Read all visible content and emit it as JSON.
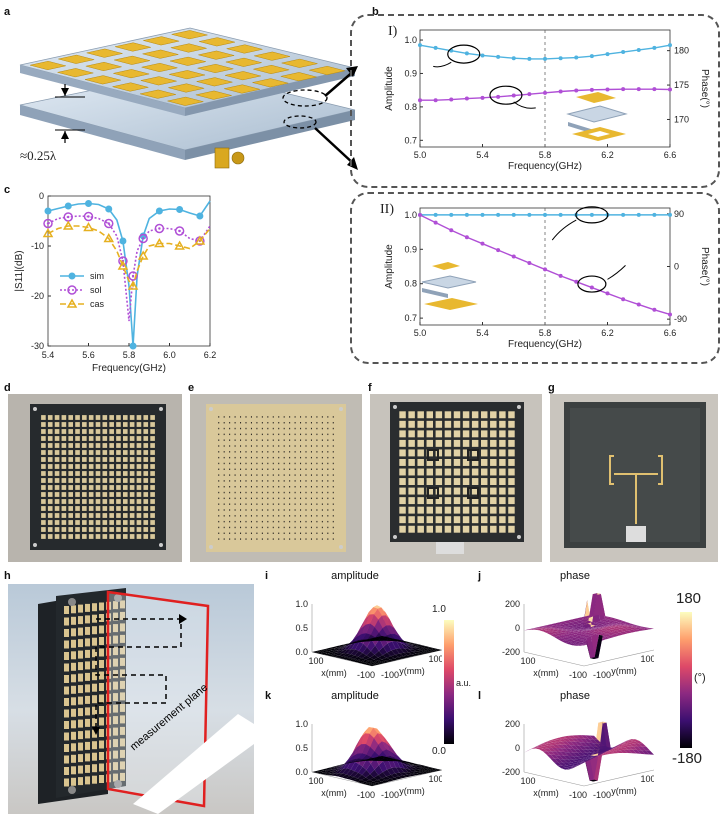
{
  "panels": {
    "a": "a",
    "b": "b",
    "c": "c",
    "d": "d",
    "e": "e",
    "f": "f",
    "g": "g",
    "h": "h",
    "i": "i",
    "j": "j",
    "k": "k",
    "l": "l"
  },
  "panel_a": {
    "spacing_label": "≈0.25λ"
  },
  "panel_b": {
    "sub1": "I)",
    "sub2": "II)",
    "xlabel": "Frequency(GHz)",
    "ylabel_left": "Amplitude",
    "ylabel_right": "Phase(°)",
    "marker_freq": 5.8
  },
  "panel_h": {
    "plane_label": "measurement plane"
  },
  "surface_titles": {
    "i": "amplitude",
    "j": "phase",
    "k": "amplitude",
    "l": "phase"
  },
  "surface_axes": {
    "x": "x(mm)",
    "y": "y(mm)"
  },
  "colorbar_amp": {
    "max": "1.0",
    "min": "0.0",
    "unit": "a.u."
  },
  "colorbar_phase": {
    "max": "180",
    "min": "-180",
    "unit": "(°)"
  },
  "colors": {
    "sim": "#4fb3e0",
    "sol": "#b04fd6",
    "cas": "#e6b020",
    "patch": "#e8b830",
    "substrate": "#c9d6e4"
  },
  "chart_data": [
    {
      "id": "b-I",
      "type": "line",
      "xlabel": "Frequency(GHz)",
      "ylabel": "Amplitude",
      "y2label": "Phase(°)",
      "xlim": [
        5.0,
        6.6
      ],
      "ylim": [
        0.68,
        1.03
      ],
      "y2lim": [
        166,
        183
      ],
      "xticks": [
        5.0,
        5.4,
        5.8,
        6.2,
        6.6
      ],
      "yticks": [
        0.7,
        0.8,
        0.9,
        1.0
      ],
      "y2ticks": [
        170,
        175,
        180
      ],
      "x": [
        5.0,
        5.1,
        5.2,
        5.3,
        5.4,
        5.5,
        5.6,
        5.7,
        5.8,
        5.9,
        6.0,
        6.1,
        6.2,
        6.3,
        6.4,
        6.5,
        6.6
      ],
      "series": [
        {
          "axis": "right",
          "values": [
            180.8,
            180.4,
            180.0,
            179.6,
            179.3,
            179.1,
            178.9,
            178.8,
            178.8,
            178.9,
            179.0,
            179.2,
            179.5,
            179.8,
            180.1,
            180.4,
            180.8
          ]
        },
        {
          "axis": "left",
          "values": [
            0.82,
            0.82,
            0.822,
            0.825,
            0.827,
            0.83,
            0.834,
            0.838,
            0.842,
            0.846,
            0.849,
            0.851,
            0.852,
            0.853,
            0.853,
            0.853,
            0.852
          ]
        }
      ]
    },
    {
      "id": "b-II",
      "type": "line",
      "xlabel": "Frequency(GHz)",
      "ylabel": "Amplitude",
      "y2label": "Phase(°)",
      "xlim": [
        5.0,
        6.6
      ],
      "ylim": [
        0.68,
        1.02
      ],
      "y2lim": [
        -100,
        100
      ],
      "xticks": [
        5.0,
        5.4,
        5.8,
        6.2,
        6.6
      ],
      "yticks": [
        0.7,
        0.8,
        0.9,
        1.0
      ],
      "y2ticks": [
        -90,
        0,
        90
      ],
      "x": [
        5.0,
        5.1,
        5.2,
        5.3,
        5.4,
        5.5,
        5.6,
        5.7,
        5.8,
        5.9,
        6.0,
        6.1,
        6.2,
        6.3,
        6.4,
        6.5,
        6.6
      ],
      "series": [
        {
          "axis": "left",
          "values": [
            1.0,
            1.0,
            1.0,
            1.0,
            1.0,
            1.0,
            1.0,
            1.0,
            1.0,
            1.0,
            1.0,
            1.0,
            1.0,
            1.0,
            1.0,
            1.0,
            1.0
          ]
        },
        {
          "axis": "right",
          "values": [
            88,
            75,
            62,
            50,
            39,
            28,
            17,
            6,
            -5,
            -16,
            -26,
            -36,
            -46,
            -56,
            -65,
            -74,
            -82
          ]
        }
      ]
    },
    {
      "id": "c",
      "type": "line",
      "xlabel": "Frequency(GHz)",
      "ylabel": "|S11|(dB)",
      "xlim": [
        5.4,
        6.2
      ],
      "ylim": [
        -30,
        0
      ],
      "xticks": [
        5.4,
        5.6,
        5.8,
        6.0,
        6.2
      ],
      "yticks": [
        -30,
        -20,
        -10,
        0
      ],
      "legend": "left",
      "series": [
        {
          "name": "sim",
          "x": [
            5.4,
            5.45,
            5.5,
            5.55,
            5.6,
            5.65,
            5.7,
            5.74,
            5.77,
            5.8,
            5.82,
            5.84,
            5.87,
            5.9,
            5.95,
            6.0,
            6.05,
            6.1,
            6.15,
            6.2
          ],
          "values": [
            -3.0,
            -2.5,
            -2.0,
            -1.6,
            -1.5,
            -1.7,
            -2.6,
            -4.8,
            -9.0,
            -18.0,
            -30.0,
            -16.0,
            -8.0,
            -4.5,
            -3.0,
            -2.6,
            -2.7,
            -3.4,
            -4.0,
            -1.0
          ]
        },
        {
          "name": "sol",
          "x": [
            5.4,
            5.45,
            5.5,
            5.55,
            5.6,
            5.65,
            5.7,
            5.74,
            5.77,
            5.8,
            5.82,
            5.84,
            5.87,
            5.9,
            5.95,
            6.0,
            6.05,
            6.1,
            6.15,
            6.2
          ],
          "values": [
            -5.5,
            -4.5,
            -4.2,
            -4.0,
            -4.1,
            -4.5,
            -5.5,
            -8.0,
            -13.0,
            -25.0,
            -16.0,
            -11.0,
            -8.5,
            -7.0,
            -6.5,
            -6.5,
            -7.0,
            -8.5,
            -9.0,
            -6.0
          ]
        },
        {
          "name": "cas",
          "x": [
            5.4,
            5.45,
            5.5,
            5.55,
            5.6,
            5.65,
            5.7,
            5.74,
            5.77,
            5.8,
            5.82,
            5.84,
            5.87,
            5.9,
            5.95,
            6.0,
            6.05,
            6.1,
            6.15,
            6.2
          ],
          "values": [
            -7.5,
            -6.5,
            -6.0,
            -6.0,
            -6.3,
            -7.0,
            -8.5,
            -11.0,
            -14.0,
            -17.0,
            -18.0,
            -15.0,
            -12.0,
            -10.0,
            -9.5,
            -9.5,
            -10.0,
            -10.5,
            -9.0,
            -6.5
          ]
        }
      ]
    }
  ]
}
